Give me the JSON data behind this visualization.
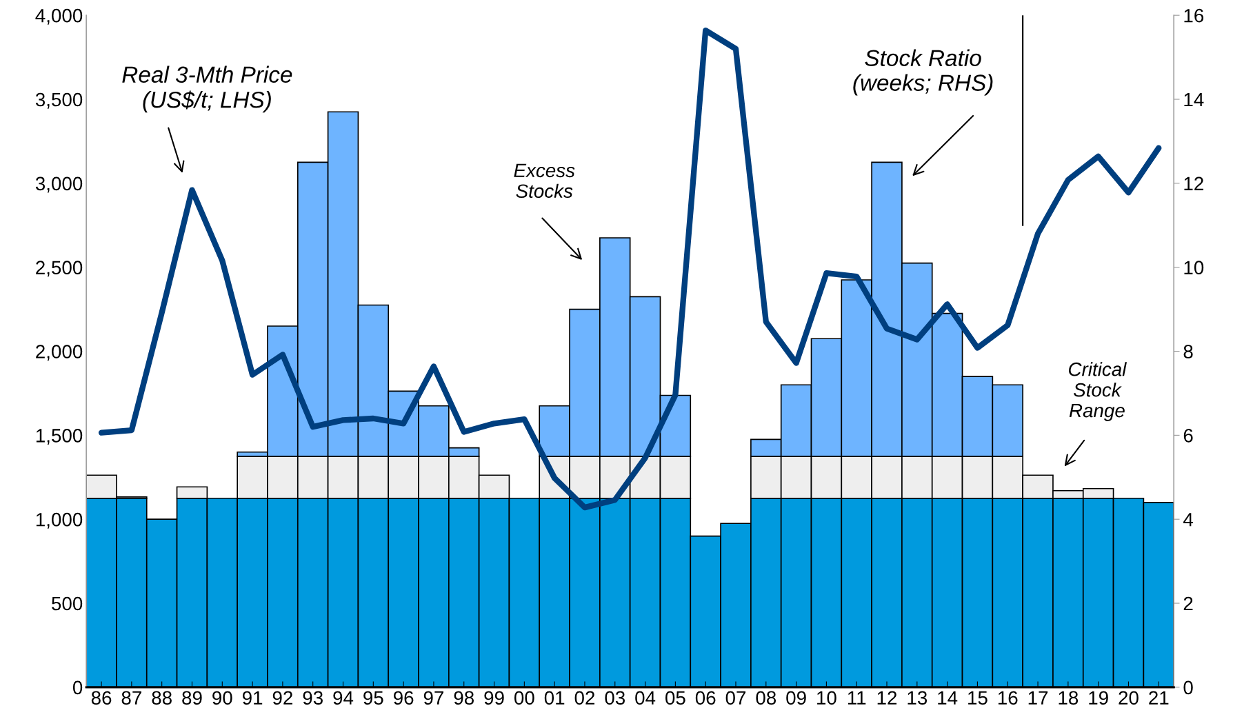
{
  "chart_data": {
    "type": "bar",
    "stacked": true,
    "categories": [
      "86",
      "87",
      "88",
      "89",
      "90",
      "91",
      "92",
      "93",
      "94",
      "95",
      "96",
      "97",
      "98",
      "99",
      "00",
      "01",
      "02",
      "03",
      "04",
      "05",
      "06",
      "07",
      "08",
      "09",
      "10",
      "11",
      "12",
      "13",
      "14",
      "15",
      "16",
      "17",
      "18",
      "19",
      "20",
      "21"
    ],
    "series": [
      {
        "axis": "y2",
        "color": "#009ade",
        "values": [
          4.5,
          4.5,
          4.0,
          4.5,
          4.5,
          4.5,
          4.5,
          4.5,
          4.5,
          4.5,
          4.5,
          4.5,
          4.5,
          4.5,
          4.5,
          4.5,
          4.5,
          4.5,
          4.5,
          4.5,
          3.6,
          3.9,
          4.5,
          4.5,
          4.5,
          4.5,
          4.5,
          4.5,
          4.5,
          4.5,
          4.5,
          4.5,
          4.5,
          4.5,
          4.5,
          4.4
        ]
      },
      {
        "axis": "y2",
        "color": "#eeeeee",
        "values": [
          0.55,
          0.03,
          0,
          0.27,
          0,
          1.0,
          1.0,
          1.0,
          1.0,
          1.0,
          1.0,
          1.0,
          1.0,
          0.55,
          0,
          1.0,
          1.0,
          1.0,
          1.0,
          1.0,
          0,
          0,
          1.0,
          1.0,
          1.0,
          1.0,
          1.0,
          1.0,
          1.0,
          1.0,
          1.0,
          0.55,
          0.18,
          0.23,
          0,
          0
        ]
      },
      {
        "axis": "y2",
        "color": "#6eb4ff",
        "values": [
          0,
          0,
          0,
          0,
          0,
          0.1,
          3.1,
          7.0,
          8.2,
          3.6,
          1.55,
          1.2,
          0.2,
          0,
          0,
          1.2,
          3.5,
          5.2,
          3.8,
          1.45,
          0,
          0,
          0.4,
          1.7,
          2.8,
          4.2,
          7.0,
          4.6,
          3.4,
          1.9,
          1.7,
          0,
          0,
          0,
          0,
          0
        ]
      },
      {
        "type": "line",
        "axis": "y",
        "color": "#003f7f",
        "values": [
          1515,
          1530,
          2230,
          2960,
          2540,
          1860,
          1980,
          1550,
          1590,
          1600,
          1570,
          1910,
          1520,
          1570,
          1595,
          1245,
          1070,
          1115,
          1365,
          1740,
          3910,
          3800,
          2175,
          1930,
          2465,
          2445,
          2135,
          2070,
          2280,
          2020,
          2155,
          2700,
          3020,
          3160,
          2945,
          3210
        ]
      }
    ],
    "ylim": [
      0,
      4000
    ],
    "yticks": [
      0,
      500,
      {
        "value": 1000,
        "label": "1,000"
      },
      {
        "value": 1500,
        "label": "1,500"
      },
      {
        "value": 2000,
        "label": "2,000"
      },
      {
        "value": 2500,
        "label": "2,500"
      },
      {
        "value": 3000,
        "label": "3,000"
      },
      {
        "value": 3500,
        "label": "3,500"
      },
      {
        "value": 4000,
        "label": "4,000"
      }
    ],
    "y2lim": [
      0,
      16
    ],
    "y2ticks": [
      0,
      2,
      4,
      6,
      8,
      10,
      12,
      14,
      16
    ],
    "grid": false,
    "legend": false,
    "annotations": [
      "Real 3-Mth Price\n(US$/t; LHS)",
      "Stock Ratio\n(weeks; RHS)",
      "Excess\nStocks",
      "Critical\nStock\nRange"
    ]
  }
}
